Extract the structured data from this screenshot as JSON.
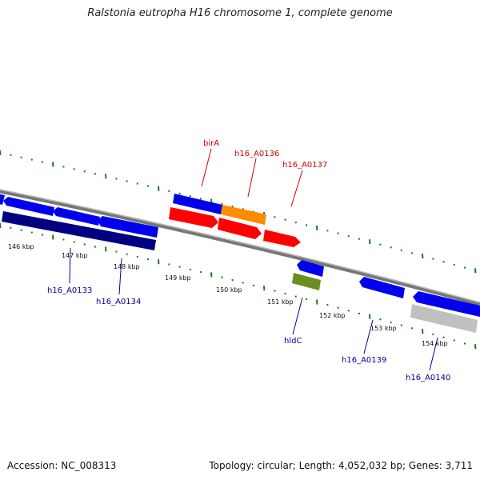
{
  "title": "Ralstonia eutropha H16 chromosome 1, complete genome",
  "footer": {
    "accession": "Accession: NC_008313",
    "summary": "Topology: circular; Length: 4,052,032 bp; Genes: 3,711"
  },
  "colors": {
    "backbone": "#888888",
    "ticks": "#1a7a1a",
    "forward_gene": "#0000ee",
    "reverse_gene": "#000080",
    "rna_feature": "#ff0000",
    "highlight_gene": "#ff8c00",
    "other_feature": "#6b8e23",
    "pseudo_feature": "#c0c0c0",
    "label_forward": "#cc0000",
    "label_reverse": "#000099"
  },
  "kbp_labels": [
    "146 kbp",
    "147 kbp",
    "148 kbp",
    "149 kbp",
    "150 kbp",
    "151 kbp",
    "152 kbp",
    "153 kbp",
    "154 kbp"
  ],
  "gene_labels_top": [
    "birA",
    "h16_A0136",
    "h16_A0137"
  ],
  "gene_labels_bottom": [
    "h16_A0133",
    "h16_A0134",
    "hldC",
    "h16_A0139",
    "h16_A0140"
  ]
}
